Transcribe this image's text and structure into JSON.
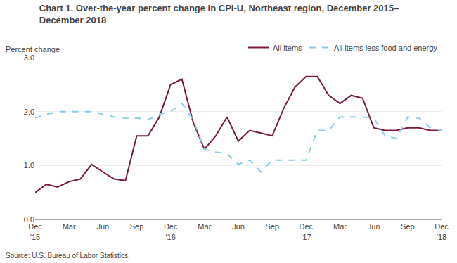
{
  "chart_data": {
    "type": "line",
    "title": "Chart 1. Over-the-year percent change in CPI-U, Northeast region, December 2015–\nDecember 2018",
    "ylabel": "Percent change",
    "source": "Source: U.S. Bureau of Labor Statistics.",
    "categories": [
      "Dec\n'15",
      null,
      null,
      "Mar",
      null,
      null,
      "Jun",
      null,
      null,
      "Sep",
      null,
      null,
      "Dec\n'16",
      null,
      null,
      "Mar",
      null,
      null,
      "Jun",
      null,
      null,
      "Sep",
      null,
      null,
      "Dec\n'17",
      null,
      null,
      "Mar",
      null,
      null,
      "Jun",
      null,
      null,
      "Sep",
      null,
      null,
      "Dec\n'18"
    ],
    "series": [
      {
        "name": "All items",
        "color": "#7B1A3C",
        "line_style": "solid",
        "values": [
          0.5,
          0.65,
          0.6,
          0.7,
          0.75,
          1.02,
          0.88,
          0.75,
          0.72,
          1.55,
          1.55,
          1.9,
          2.5,
          2.6,
          1.8,
          1.3,
          1.55,
          1.9,
          1.45,
          1.65,
          1.6,
          1.55,
          2.05,
          2.45,
          2.65,
          2.65,
          2.3,
          2.15,
          2.3,
          2.25,
          1.7,
          1.65,
          1.65,
          1.7,
          1.7,
          1.65,
          1.65
        ]
      },
      {
        "name": "All items less food and energy",
        "color": "#87CEEB",
        "line_style": "dashed",
        "values": [
          1.88,
          1.95,
          2.0,
          2.0,
          2.0,
          2.0,
          1.95,
          1.9,
          1.88,
          1.88,
          1.85,
          1.95,
          2.0,
          2.15,
          1.85,
          1.3,
          1.25,
          1.22,
          1.02,
          1.1,
          0.88,
          1.1,
          1.1,
          1.1,
          1.1,
          1.65,
          1.65,
          1.9,
          1.9,
          1.9,
          1.88,
          1.55,
          1.5,
          1.9,
          1.88,
          1.7,
          1.65
        ]
      }
    ],
    "ylim": [
      0.0,
      3.0
    ],
    "yticks": [
      {
        "value": 0.0,
        "label": "0.0"
      },
      {
        "value": 1.0,
        "label": "1.0"
      },
      {
        "value": 2.0,
        "label": "2.0"
      },
      {
        "value": 3.0,
        "label": "3.0"
      }
    ],
    "grid": true,
    "legend": "upper right"
  }
}
